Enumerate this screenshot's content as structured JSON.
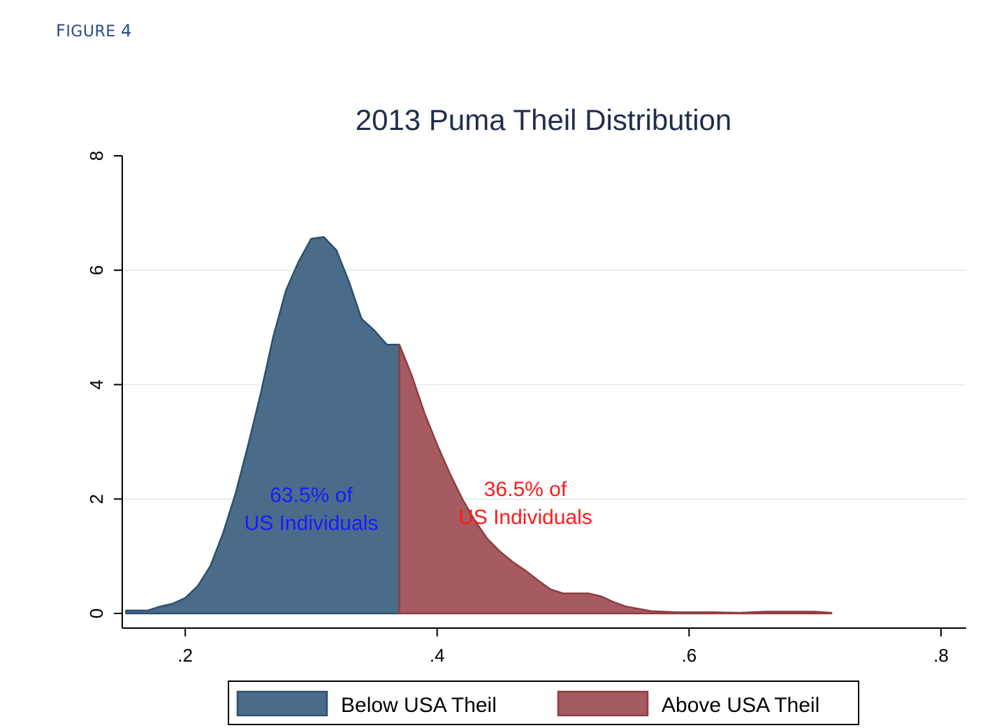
{
  "figure_label": "Figure 4",
  "colors": {
    "below_fill": "#4a6c8a",
    "below_stroke": "#2e4f6e",
    "above_fill": "#a55b60",
    "above_stroke": "#8f3c43",
    "grid": "#e6eef0",
    "title": "#1f2d4d",
    "annotation_below": "#1a1aff",
    "annotation_above": "#ff1a1a"
  },
  "chart_data": {
    "type": "area",
    "title": "2013 Puma Theil Distribution",
    "xlabel": "",
    "ylabel": "",
    "xlim": [
      0.15,
      0.82
    ],
    "ylim": [
      0,
      8
    ],
    "x_ticks": [
      0.2,
      0.4,
      0.6,
      0.8
    ],
    "x_tick_labels": [
      ".2",
      ".4",
      ".6",
      ".8"
    ],
    "y_ticks": [
      0,
      2,
      4,
      6,
      8
    ],
    "y_tick_labels": [
      "0",
      "2",
      "4",
      "6",
      "8"
    ],
    "grid": "horizontal",
    "split_x": 0.37,
    "series": [
      {
        "name": "Below USA Theil",
        "x": [
          0.153,
          0.17,
          0.18,
          0.19,
          0.2,
          0.21,
          0.22,
          0.23,
          0.24,
          0.25,
          0.26,
          0.27,
          0.28,
          0.29,
          0.3,
          0.31,
          0.32,
          0.33,
          0.34,
          0.35,
          0.36,
          0.37
        ],
        "y": [
          0.05,
          0.05,
          0.12,
          0.17,
          0.27,
          0.48,
          0.83,
          1.4,
          2.1,
          2.95,
          3.85,
          4.85,
          5.65,
          6.15,
          6.55,
          6.58,
          6.35,
          5.8,
          5.15,
          4.95,
          4.7,
          4.7
        ]
      },
      {
        "name": "Above USA Theil",
        "x": [
          0.37,
          0.38,
          0.39,
          0.4,
          0.41,
          0.42,
          0.43,
          0.44,
          0.45,
          0.46,
          0.47,
          0.48,
          0.49,
          0.5,
          0.51,
          0.52,
          0.53,
          0.54,
          0.55,
          0.56,
          0.57,
          0.58,
          0.59,
          0.6,
          0.62,
          0.64,
          0.66,
          0.68,
          0.7,
          0.713
        ],
        "y": [
          4.7,
          4.15,
          3.5,
          2.95,
          2.45,
          2.0,
          1.62,
          1.3,
          1.08,
          0.9,
          0.75,
          0.58,
          0.42,
          0.35,
          0.35,
          0.35,
          0.3,
          0.2,
          0.12,
          0.08,
          0.04,
          0.03,
          0.02,
          0.02,
          0.02,
          0.01,
          0.03,
          0.03,
          0.03,
          0.01
        ]
      }
    ],
    "annotations": [
      {
        "lines": [
          "63.5% of",
          "US Individuals"
        ],
        "x": 0.3,
        "y": 1.95,
        "series": "below"
      },
      {
        "lines": [
          "36.5% of",
          "US Individuals"
        ],
        "x": 0.47,
        "y": 2.05,
        "series": "above"
      }
    ],
    "legend": {
      "placement": "bottom-center",
      "entries": [
        "Below USA Theil",
        "Above USA Theil"
      ]
    }
  }
}
